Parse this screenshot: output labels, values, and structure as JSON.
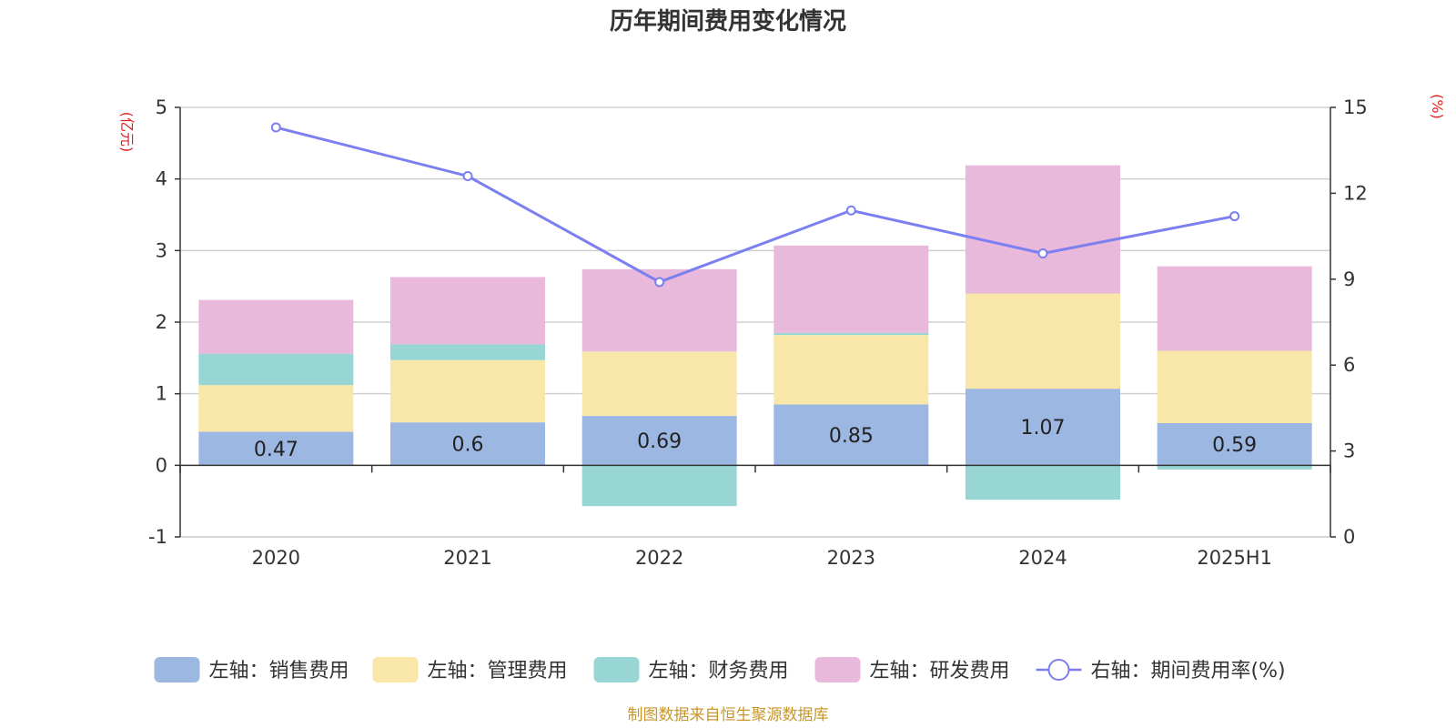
{
  "chart_data": {
    "type": "bar",
    "title": "历年期间费用变化情况",
    "categories": [
      "2020",
      "2021",
      "2022",
      "2023",
      "2024",
      "2025H1"
    ],
    "series": [
      {
        "name": "左轴：销售费用",
        "axis": "left",
        "kind": "bar",
        "color": "#9db7e3",
        "values": [
          0.47,
          0.6,
          0.69,
          0.85,
          1.07,
          0.59
        ],
        "labels": [
          "0.47",
          "0.6",
          "0.69",
          "0.85",
          "1.07",
          "0.59"
        ]
      },
      {
        "name": "左轴：管理费用",
        "axis": "left",
        "kind": "bar",
        "color": "#f8e7a8",
        "values": [
          0.65,
          0.87,
          0.9,
          0.97,
          1.33,
          1.01
        ]
      },
      {
        "name": "左轴：财务费用",
        "axis": "left",
        "kind": "bar",
        "color": "#98d5d5",
        "values": [
          0.44,
          0.22,
          -0.57,
          0.03,
          -0.48,
          -0.06
        ]
      },
      {
        "name": "左轴：研发费用",
        "axis": "left",
        "kind": "bar",
        "color": "#e8b9da",
        "values": [
          0.75,
          0.94,
          1.15,
          1.22,
          1.79,
          1.18
        ]
      },
      {
        "name": "右轴：期间费用率(%)",
        "axis": "right",
        "kind": "line",
        "color": "#7b7ff0",
        "values": [
          14.3,
          12.6,
          8.9,
          11.4,
          9.9,
          11.2
        ]
      }
    ],
    "left_axis": {
      "unit": "(亿元)",
      "ylim": [
        -1,
        5
      ],
      "ticks": [
        "-1",
        "0",
        "1",
        "2",
        "3",
        "4",
        "5"
      ]
    },
    "right_axis": {
      "unit": "(%)",
      "ylim": [
        0,
        15
      ],
      "ticks": [
        "0",
        "3",
        "6",
        "9",
        "12",
        "15"
      ]
    },
    "grid": true,
    "legend_position": "bottom"
  },
  "source_note": "制图数据来自恒生聚源数据库"
}
